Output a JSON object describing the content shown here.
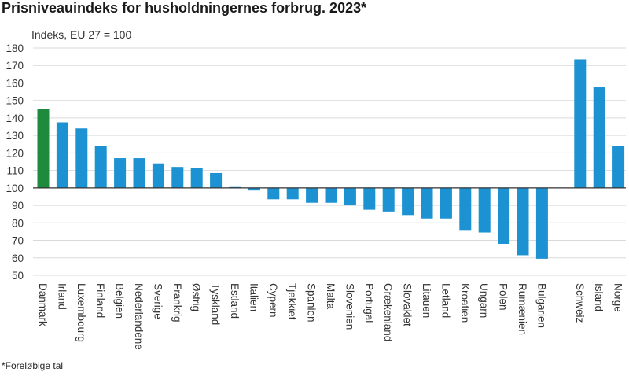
{
  "title": "Prisniveauindeks for husholdningernes forbrug. 2023*",
  "footnote": "*Foreløbige tal",
  "chart_data": {
    "type": "bar",
    "ylabel": "Indeks, EU 27 = 100",
    "xlabel": "",
    "ylim": [
      50,
      180
    ],
    "yticks": [
      50,
      60,
      70,
      80,
      90,
      100,
      110,
      120,
      130,
      140,
      150,
      160,
      170,
      180
    ],
    "baseline": 100,
    "grid": true,
    "legend": "none",
    "categories": [
      "Danmark",
      "Irland",
      "Luxembourg",
      "Finland",
      "Belgien",
      "Nederlandene",
      "Sverige",
      "Frankrig",
      "Østrig",
      "Tyskland",
      "Estland",
      "Italien",
      "Cypern",
      "Tjekkiet",
      "Spanien",
      "Malta",
      "Slovenien",
      "Portugal",
      "Grækenland",
      "Slovakiet",
      "Litauen",
      "Letland",
      "Kroatien",
      "Ungarn",
      "Polen",
      "Rumænien",
      "Bulgarien",
      "Schweiz",
      "Island",
      "Norge"
    ],
    "values": [
      145,
      137.5,
      134,
      124,
      117,
      117,
      114,
      112,
      111.5,
      108.5,
      100.5,
      98.5,
      93.5,
      93.5,
      91.5,
      91.5,
      90,
      87.5,
      86.5,
      84.5,
      82.5,
      82.5,
      75.5,
      74.5,
      68,
      61.5,
      59.5,
      173.5,
      157.5,
      124
    ],
    "colors": {
      "highlight": "#1e8a3e",
      "bar": "#1c92d2",
      "grid": "#d9d9d9",
      "baseline": "#333333"
    },
    "highlight_index": 0
  }
}
